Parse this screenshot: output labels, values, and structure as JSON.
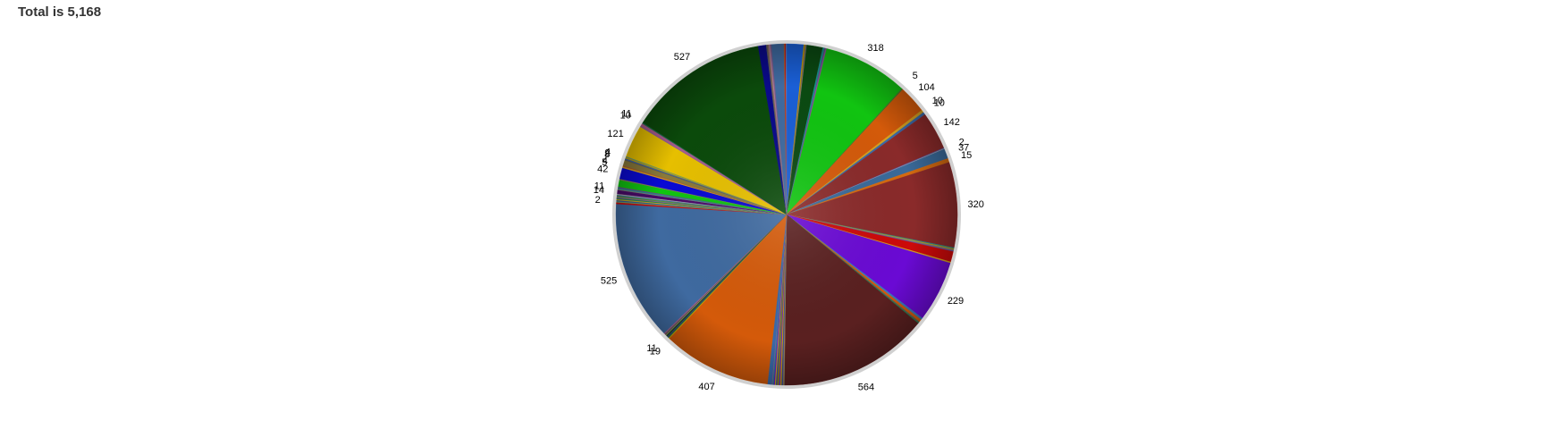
{
  "header": {
    "total_text": "Total is 5,168"
  },
  "chart_data": {
    "type": "pie",
    "title": "",
    "total": 5168,
    "start_angle_deg": 0,
    "direction": "clockwise",
    "slices": [
      {
        "value": 64,
        "color": "#1a5fd6",
        "label": ""
      },
      {
        "value": 4,
        "color": "#c8a000",
        "label": ""
      },
      {
        "value": 4,
        "color": "#8a6a3a",
        "label": ""
      },
      {
        "value": 3,
        "color": "#7a7a7a",
        "label": ""
      },
      {
        "value": 60,
        "color": "#0b4a12",
        "label": ""
      },
      {
        "value": 7,
        "color": "#1a8f8f",
        "label": ""
      },
      {
        "value": 4,
        "color": "#6a4a8a",
        "label": ""
      },
      {
        "value": 4,
        "color": "#8a5a9a",
        "label": ""
      },
      {
        "value": 318,
        "color": "#11c411",
        "label": "318"
      },
      {
        "value": 5,
        "color": "#4a7a2a",
        "label": "5"
      },
      {
        "value": 104,
        "color": "#d45a0a",
        "label": "104"
      },
      {
        "value": 10,
        "color": "#d4a020",
        "label": "10"
      },
      {
        "value": 10,
        "color": "#3a6aa8",
        "label": "10"
      },
      {
        "value": 142,
        "color": "#8a2a2a",
        "label": "142"
      },
      {
        "value": 3,
        "color": "#5a5aa8",
        "label": ""
      },
      {
        "value": 2,
        "color": "#aaaaaa",
        "label": "2"
      },
      {
        "value": 37,
        "color": "#3a6a9a",
        "label": "37"
      },
      {
        "value": 15,
        "color": "#d46a10",
        "label": "15"
      },
      {
        "value": 320,
        "color": "#8a2a2a",
        "label": "320"
      },
      {
        "value": 4,
        "color": "#2a8a8a",
        "label": ""
      },
      {
        "value": 3,
        "color": "#c8a000",
        "label": ""
      },
      {
        "value": 5,
        "color": "#7a7a7a",
        "label": ""
      },
      {
        "value": 3,
        "color": "#6a4a9a",
        "label": ""
      },
      {
        "value": 39,
        "color": "#cc0a0a",
        "label": ""
      },
      {
        "value": 5,
        "color": "#d4a020",
        "label": ""
      },
      {
        "value": 229,
        "color": "#6a0ad4",
        "label": "229"
      },
      {
        "value": 8,
        "color": "#3a7ab8",
        "label": ""
      },
      {
        "value": 10,
        "color": "#d45a0a",
        "label": ""
      },
      {
        "value": 4,
        "color": "#5a5a5a",
        "label": ""
      },
      {
        "value": 3,
        "color": "#1a8a4a",
        "label": ""
      },
      {
        "value": 564,
        "color": "#5a2020",
        "label": "564"
      },
      {
        "value": 6,
        "color": "#8a7a5a",
        "label": ""
      },
      {
        "value": 5,
        "color": "#3a4a9a",
        "label": ""
      },
      {
        "value": 5,
        "color": "#c8a000",
        "label": ""
      },
      {
        "value": 4,
        "color": "#7a0ad4",
        "label": ""
      },
      {
        "value": 4,
        "color": "#5a9a2a",
        "label": ""
      },
      {
        "value": 4,
        "color": "#aa5a2a",
        "label": ""
      },
      {
        "value": 4,
        "color": "#2a5a9a",
        "label": ""
      },
      {
        "value": 4,
        "color": "#d4a020",
        "label": ""
      },
      {
        "value": 4,
        "color": "#6a0ad4",
        "label": ""
      },
      {
        "value": 4,
        "color": "#1a8f8f",
        "label": ""
      },
      {
        "value": 3,
        "color": "#8a5a9a",
        "label": ""
      },
      {
        "value": 16,
        "color": "#3a6aa8",
        "label": ""
      },
      {
        "value": 407,
        "color": "#d45a0a",
        "label": "407"
      },
      {
        "value": 4,
        "color": "#c8a000",
        "label": ""
      },
      {
        "value": 4,
        "color": "#1a6a4a",
        "label": "19"
      },
      {
        "value": 4,
        "color": "#3a3a7a",
        "label": ""
      },
      {
        "value": 4,
        "color": "#0b4a12",
        "label": ""
      },
      {
        "value": 4,
        "color": "#8a7a5a",
        "label": ""
      },
      {
        "value": 4,
        "color": "#5a5a5a",
        "label": "11"
      },
      {
        "value": 4,
        "color": "#aa5a8a",
        "label": ""
      },
      {
        "value": 525,
        "color": "#3f6aa0",
        "label": "525"
      },
      {
        "value": 6,
        "color": "#cc0a0a",
        "label": ""
      },
      {
        "value": 4,
        "color": "#6a9a6a",
        "label": ""
      },
      {
        "value": 4,
        "color": "#2a5a9a",
        "label": "2"
      },
      {
        "value": 4,
        "color": "#d4a020",
        "label": ""
      },
      {
        "value": 4,
        "color": "#1a8a4a",
        "label": ""
      },
      {
        "value": 4,
        "color": "#8a5a9a",
        "label": ""
      },
      {
        "value": 4,
        "color": "#5a9a2a",
        "label": ""
      },
      {
        "value": 4,
        "color": "#3a6a9a",
        "label": ""
      },
      {
        "value": 4,
        "color": "#aaaaaa",
        "label": ""
      },
      {
        "value": 14,
        "color": "#4a0a6a",
        "label": "14"
      },
      {
        "value": 4,
        "color": "#7a7a7a",
        "label": ""
      },
      {
        "value": 4,
        "color": "#1a8f8f",
        "label": "11"
      },
      {
        "value": 4,
        "color": "#6a4a8a",
        "label": ""
      },
      {
        "value": 26,
        "color": "#11c411",
        "label": ""
      },
      {
        "value": 4,
        "color": "#8a7a5a",
        "label": ""
      },
      {
        "value": 42,
        "color": "#0a0ad4",
        "label": "42"
      },
      {
        "value": 5,
        "color": "#d4a020",
        "label": "5"
      },
      {
        "value": 4,
        "color": "#aa5a2a",
        "label": "4"
      },
      {
        "value": 20,
        "color": "#8a7a3a",
        "label": ""
      },
      {
        "value": 4,
        "color": "#5a5a5a",
        "label": "8"
      },
      {
        "value": 4,
        "color": "#3a6aa8",
        "label": "2"
      },
      {
        "value": 4,
        "color": "#c8a000",
        "label": "4"
      },
      {
        "value": 4,
        "color": "#6a9a6a",
        "label": ""
      },
      {
        "value": 121,
        "color": "#e6bf00",
        "label": "121"
      },
      {
        "value": 4,
        "color": "#8a5a9a",
        "label": ""
      },
      {
        "value": 10,
        "color": "#aa5a8a",
        "label": "10"
      },
      {
        "value": 4,
        "color": "#1a6a4a",
        "label": "11"
      },
      {
        "value": 527,
        "color": "#0b4a0b",
        "label": "527"
      },
      {
        "value": 30,
        "color": "#0a0a8a",
        "label": ""
      },
      {
        "value": 5,
        "color": "#5a5a5a",
        "label": ""
      },
      {
        "value": 5,
        "color": "#8a6a5a",
        "label": ""
      },
      {
        "value": 5,
        "color": "#aa7a9a",
        "label": ""
      },
      {
        "value": 5,
        "color": "#7a5a8a",
        "label": ""
      },
      {
        "value": 46,
        "color": "#3f6aa0",
        "label": ""
      },
      {
        "value": 4,
        "color": "#aa5a2a",
        "label": ""
      },
      {
        "value": 3,
        "color": "#cc0a0a",
        "label": ""
      },
      {
        "value": 3,
        "color": "#5a7ab8",
        "label": ""
      }
    ]
  }
}
